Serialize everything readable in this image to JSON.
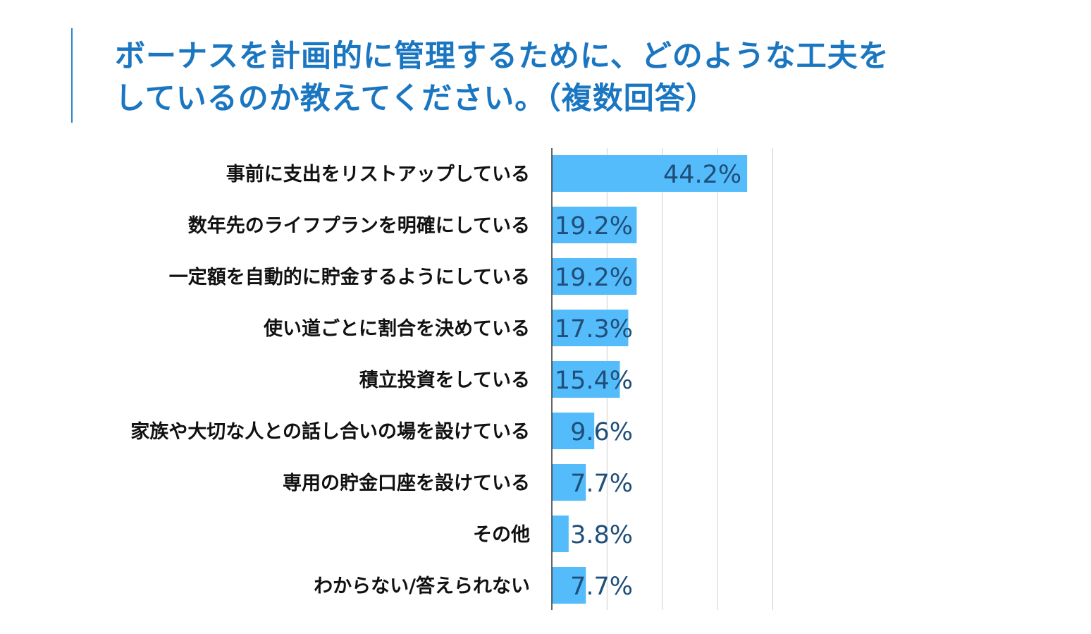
{
  "title": {
    "line1": "ボーナスを計画的に管理するために、どのような工夫を",
    "line2": "しているのか教えてください。（複数回答）"
  },
  "chart_data": {
    "type": "bar",
    "orientation": "horizontal",
    "title": "ボーナスを計画的に管理するために、どのような工夫をしているのか教えてください。（複数回答）",
    "categories": [
      "事前に支出をリストアップしている",
      "数年先のライフプランを明確にしている",
      "一定額を自動的に貯金するようにしている",
      "使い道ごとに割合を決めている",
      "積立投資をしている",
      "家族や大切な人との話し合いの場を設けている",
      "専用の貯金口座を設けている",
      "その他",
      "わからない/答えられない"
    ],
    "values": [
      44.2,
      19.2,
      19.2,
      17.3,
      15.4,
      9.6,
      7.7,
      3.8,
      7.7
    ],
    "value_labels": [
      "44.2%",
      "19.2%",
      "19.2%",
      "17.3%",
      "15.4%",
      "9.6%",
      "7.7%",
      "3.8%",
      "7.7%"
    ],
    "unit": "%",
    "xlim": [
      0,
      50
    ],
    "grid": true,
    "colors": {
      "bar": "#55bcfb",
      "label": "#1f4e79",
      "title": "#1a76c1"
    }
  }
}
